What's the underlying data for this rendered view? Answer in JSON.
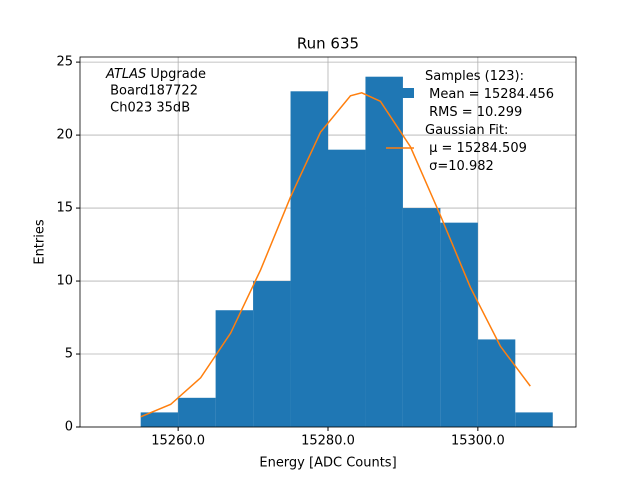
{
  "chart_data": {
    "type": "histogram",
    "title": "Run 635",
    "xlabel": "Energy [ADC Counts]",
    "ylabel": "Entries",
    "annotation": {
      "emphasis": "ATLAS",
      "lines": [
        " Upgrade",
        " Board187722",
        " Ch023 35dB"
      ]
    },
    "bins": [
      15255,
      15260,
      15265,
      15270,
      15275,
      15280,
      15285,
      15290,
      15295,
      15300,
      15305,
      15310
    ],
    "series": [
      {
        "name": "Samples (123):\n Mean = 15284.456\n RMS = 10.299",
        "color": "#1f77b4",
        "values": [
          1,
          2,
          8,
          10,
          23,
          19,
          24,
          15,
          14,
          6,
          1
        ]
      }
    ],
    "fit": {
      "type": "line",
      "name": "Gaussian Fit:\n μ = 15284.509\n σ=10.982",
      "color": "#ff7f0e",
      "x": [
        15255,
        15259,
        15263,
        15267,
        15271,
        15275,
        15279,
        15283,
        15284.5,
        15287,
        15291,
        15295,
        15299,
        15303,
        15307
      ],
      "values": [
        0.7,
        1.55,
        3.37,
        6.43,
        10.76,
        15.76,
        20.2,
        22.69,
        22.9,
        22.31,
        19.2,
        14.5,
        9.57,
        5.54,
        2.8
      ]
    },
    "xlim": [
      15246.9,
      15313.1
    ],
    "ylim": [
      0,
      25.35
    ],
    "xticks": [
      {
        "value": 15260,
        "label": "15260.0"
      },
      {
        "value": 15280,
        "label": "15280.0"
      },
      {
        "value": 15300,
        "label": "15300.0"
      }
    ],
    "yticks": [
      0,
      5,
      10,
      15,
      20,
      25
    ],
    "grid": true
  }
}
